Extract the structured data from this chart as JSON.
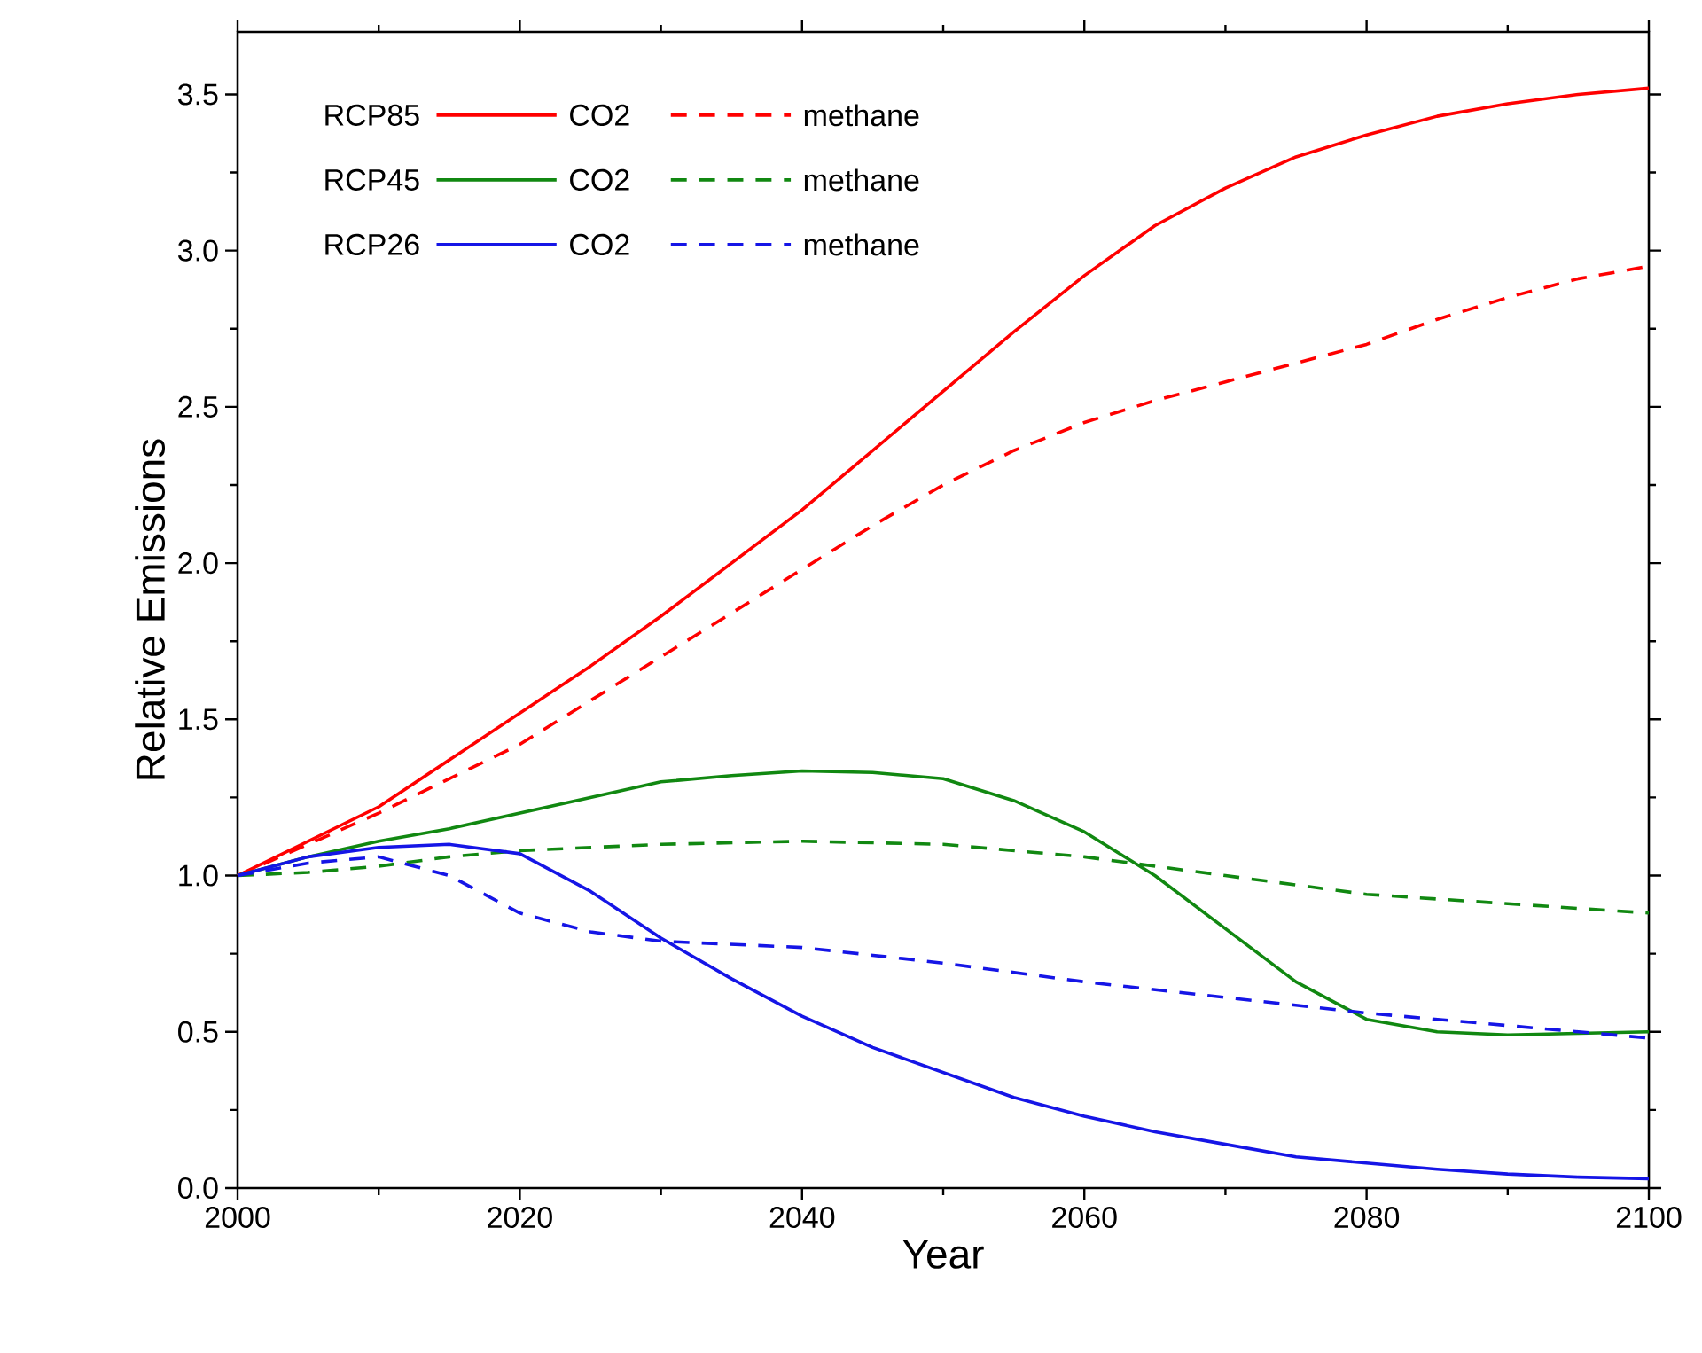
{
  "chart_data": {
    "type": "line",
    "xlabel": "Year",
    "ylabel": "Relative Emissions",
    "xlim": [
      2000,
      2100
    ],
    "xticks": [
      2000,
      2020,
      2040,
      2060,
      2080,
      2100
    ],
    "ylim": [
      0,
      3.7
    ],
    "yticks": [
      {
        "value": 0,
        "label": "0.0"
      },
      0.5,
      {
        "value": 1,
        "label": "1.0"
      },
      1.5,
      {
        "value": 2,
        "label": "2.0"
      },
      2.5,
      {
        "value": 3,
        "label": "3.0"
      },
      3.5
    ],
    "grid": false,
    "legend": "top left",
    "marker": "none",
    "annotations": [
      "RCP85",
      "RCP45",
      "RCP26"
    ],
    "series": [
      {
        "name": "CO2",
        "color": "#ff0000",
        "line_style": "solid",
        "x": [
          2000,
          2005,
          2010,
          2015,
          2020,
          2025,
          2030,
          2035,
          2040,
          2045,
          2050,
          2055,
          2060,
          2065,
          2070,
          2075,
          2080,
          2085,
          2090,
          2095,
          2100
        ],
        "values": [
          1.0,
          1.11,
          1.22,
          1.37,
          1.52,
          1.67,
          1.83,
          2.0,
          2.17,
          2.36,
          2.55,
          2.74,
          2.92,
          3.08,
          3.2,
          3.3,
          3.37,
          3.43,
          3.47,
          3.5,
          3.52
        ]
      },
      {
        "name": "methane",
        "color": "#ff0000",
        "line_style": "dashed",
        "x": [
          2000,
          2005,
          2010,
          2015,
          2020,
          2025,
          2030,
          2035,
          2040,
          2045,
          2050,
          2055,
          2060,
          2065,
          2070,
          2075,
          2080,
          2085,
          2090,
          2095,
          2100
        ],
        "values": [
          1.0,
          1.1,
          1.2,
          1.31,
          1.42,
          1.56,
          1.7,
          1.84,
          1.98,
          2.12,
          2.25,
          2.36,
          2.45,
          2.52,
          2.58,
          2.64,
          2.7,
          2.78,
          2.85,
          2.91,
          2.95
        ]
      },
      {
        "name": "CO2",
        "color": "#118811",
        "line_style": "solid",
        "x": [
          2000,
          2005,
          2010,
          2015,
          2020,
          2025,
          2030,
          2035,
          2040,
          2045,
          2050,
          2055,
          2060,
          2065,
          2070,
          2075,
          2080,
          2085,
          2090,
          2095,
          2100
        ],
        "values": [
          1.0,
          1.06,
          1.11,
          1.15,
          1.2,
          1.25,
          1.3,
          1.32,
          1.335,
          1.33,
          1.31,
          1.24,
          1.14,
          1.0,
          0.83,
          0.66,
          0.54,
          0.5,
          0.49,
          0.495,
          0.5
        ]
      },
      {
        "name": "methane",
        "color": "#118811",
        "line_style": "dashed",
        "x": [
          2000,
          2005,
          2010,
          2015,
          2020,
          2030,
          2040,
          2050,
          2060,
          2070,
          2080,
          2090,
          2100
        ],
        "values": [
          1.0,
          1.01,
          1.03,
          1.06,
          1.08,
          1.1,
          1.11,
          1.1,
          1.06,
          1.0,
          0.94,
          0.91,
          0.88
        ]
      },
      {
        "name": "CO2",
        "color": "#1515e6",
        "line_style": "solid",
        "x": [
          2000,
          2005,
          2010,
          2015,
          2020,
          2025,
          2030,
          2035,
          2040,
          2045,
          2050,
          2055,
          2060,
          2065,
          2070,
          2075,
          2080,
          2085,
          2090,
          2095,
          2100
        ],
        "values": [
          1.0,
          1.06,
          1.09,
          1.1,
          1.07,
          0.95,
          0.8,
          0.67,
          0.55,
          0.45,
          0.37,
          0.29,
          0.23,
          0.18,
          0.14,
          0.1,
          0.08,
          0.06,
          0.045,
          0.035,
          0.03
        ]
      },
      {
        "name": "methane",
        "color": "#1515e6",
        "line_style": "dashed",
        "x": [
          2000,
          2005,
          2010,
          2015,
          2020,
          2025,
          2030,
          2040,
          2050,
          2060,
          2070,
          2080,
          2090,
          2100
        ],
        "values": [
          1.0,
          1.04,
          1.06,
          1.0,
          0.88,
          0.82,
          0.79,
          0.77,
          0.72,
          0.66,
          0.61,
          0.56,
          0.52,
          0.48
        ]
      }
    ]
  }
}
